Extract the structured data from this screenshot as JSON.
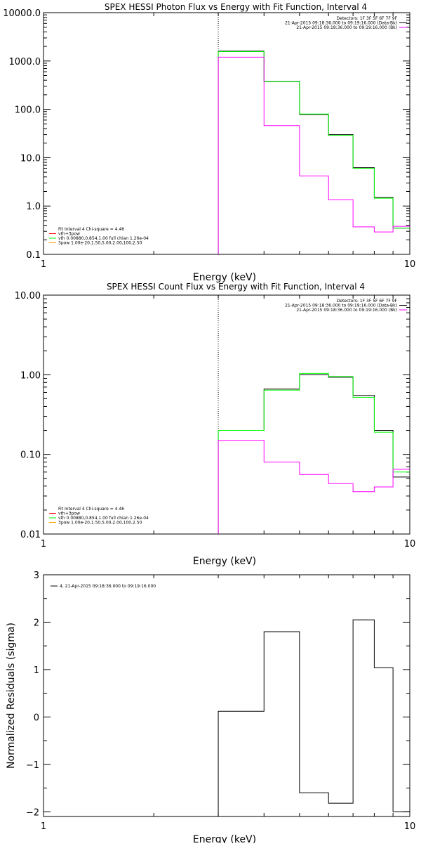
{
  "chart_data": [
    {
      "type": "line",
      "title": "SPEX HESSI Photon Flux vs Energy with Fit Function, Interval 4",
      "xlabel": "Energy (keV)",
      "ylabel": "",
      "x_scale": "log",
      "y_scale": "log",
      "xlim": [
        1,
        10
      ],
      "ylim": [
        0.1,
        10000
      ],
      "x_ticks": [
        "1",
        "10"
      ],
      "y_ticks": [
        "0.1",
        "1.0",
        "10.0",
        "100.0",
        "1000.0",
        "10000.0"
      ],
      "vline_x": 3,
      "legend_top": {
        "placement": "top-right",
        "entries": [
          {
            "label": "Detectors: 1F 3F 5F 6F 7F 9F",
            "color": ""
          },
          {
            "label": "21-Apr-2015 09:18:36.000 to 09:19:16.000 (Data-Bk)",
            "color": "#000000"
          },
          {
            "label": "21-Apr-2015 09:18:36.000 to 09:19:16.000 (Bk)",
            "color": "#ff00ff"
          }
        ]
      },
      "legend_bottom": {
        "placement": "bottom-left",
        "entries": [
          {
            "label": "Fit Interval 4   Chi-square = 4.46",
            "color": ""
          },
          {
            "label": "vth+3pow",
            "color": "#ff0000"
          },
          {
            "label": "vth 0.00880,0.854,1.00   full chian 1.26e-04",
            "color": "#00ff00"
          },
          {
            "label": "3pow 1.00e-20,1.50,5.00,2.00,100,2.50",
            "color": "#ffa500"
          }
        ]
      },
      "bin_edges": [
        3,
        4,
        5,
        6,
        7,
        8,
        9,
        10
      ],
      "series": [
        {
          "color": "#000000",
          "values": [
            1600,
            380,
            78,
            30,
            6.2,
            1.5,
            0.35
          ]
        },
        {
          "color": "#00ff00",
          "values": [
            1560,
            375,
            80,
            29,
            6.0,
            1.45,
            0.35
          ]
        },
        {
          "color": "#ff00ff",
          "values": [
            1200,
            46,
            4.2,
            1.35,
            0.37,
            0.29,
            0.38
          ]
        }
      ]
    },
    {
      "type": "line",
      "title": "SPEX HESSI Count Flux vs Energy with Fit Function, Interval 4",
      "xlabel": "Energy (keV)",
      "ylabel": "",
      "x_scale": "log",
      "y_scale": "log",
      "xlim": [
        1,
        10
      ],
      "ylim": [
        0.01,
        10
      ],
      "x_ticks": [
        "1",
        "10"
      ],
      "y_ticks": [
        "0.01",
        "0.10",
        "1.00",
        "10.00"
      ],
      "vline_x": 3,
      "legend_top": {
        "placement": "top-right",
        "entries": [
          {
            "label": "Detectors: 1F 3F 5F 6F 7F 9F",
            "color": ""
          },
          {
            "label": "21-Apr-2015 09:18:36.000 to 09:19:16.000 (Data-Bk)",
            "color": "#000000"
          },
          {
            "label": "21-Apr-2015 09:18:36.000 to 09:19:16.000 (Bk)",
            "color": "#ff00ff"
          }
        ]
      },
      "legend_bottom": {
        "placement": "bottom-left",
        "entries": [
          {
            "label": "Fit Interval 4   Chi-square = 4.46",
            "color": ""
          },
          {
            "label": "vth+3pow",
            "color": "#ff0000"
          },
          {
            "label": "vth 0.00880,0.854,1.00   full chian 1.26e-04",
            "color": "#00ff00"
          },
          {
            "label": "3pow 1.00e-20,1.50,5.00,2.00,100,2.50",
            "color": "#ffa500"
          }
        ]
      },
      "bin_edges": [
        3,
        4,
        5,
        6,
        7,
        8,
        9,
        10
      ],
      "series": [
        {
          "color": "#000000",
          "values": [
            0.2,
            0.66,
            1.0,
            0.93,
            0.55,
            0.2,
            0.052
          ]
        },
        {
          "color": "#00ff00",
          "values": [
            0.2,
            0.64,
            1.04,
            0.95,
            0.52,
            0.19,
            0.06
          ]
        },
        {
          "color": "#ff00ff",
          "values": [
            0.15,
            0.08,
            0.056,
            0.043,
            0.034,
            0.039,
            0.065
          ]
        }
      ]
    },
    {
      "type": "line",
      "title": "",
      "xlabel": "Energy (keV)",
      "ylabel": "Normalized Residuals (sigma)",
      "x_scale": "log",
      "y_scale": "linear",
      "xlim": [
        1,
        10
      ],
      "ylim": [
        -2.1,
        3
      ],
      "x_ticks": [
        "1",
        "10"
      ],
      "y_ticks": [
        "3",
        "2",
        "1",
        "0",
        "−1",
        "−2"
      ],
      "y_tick_values": [
        3,
        2,
        1,
        0,
        -1,
        -2
      ],
      "legend": {
        "placement": "top-left",
        "entries": [
          {
            "label": "4, 21-Apr-2015 09:18:36.000 to 09:19:16.000",
            "color": "#000000"
          }
        ]
      },
      "bin_edges": [
        3,
        4,
        5,
        6,
        7,
        8,
        9,
        10
      ],
      "series": [
        {
          "color": "#000000",
          "values": [
            0.12,
            1.8,
            -1.6,
            -1.82,
            2.05,
            1.04,
            -2.0
          ]
        }
      ]
    }
  ]
}
